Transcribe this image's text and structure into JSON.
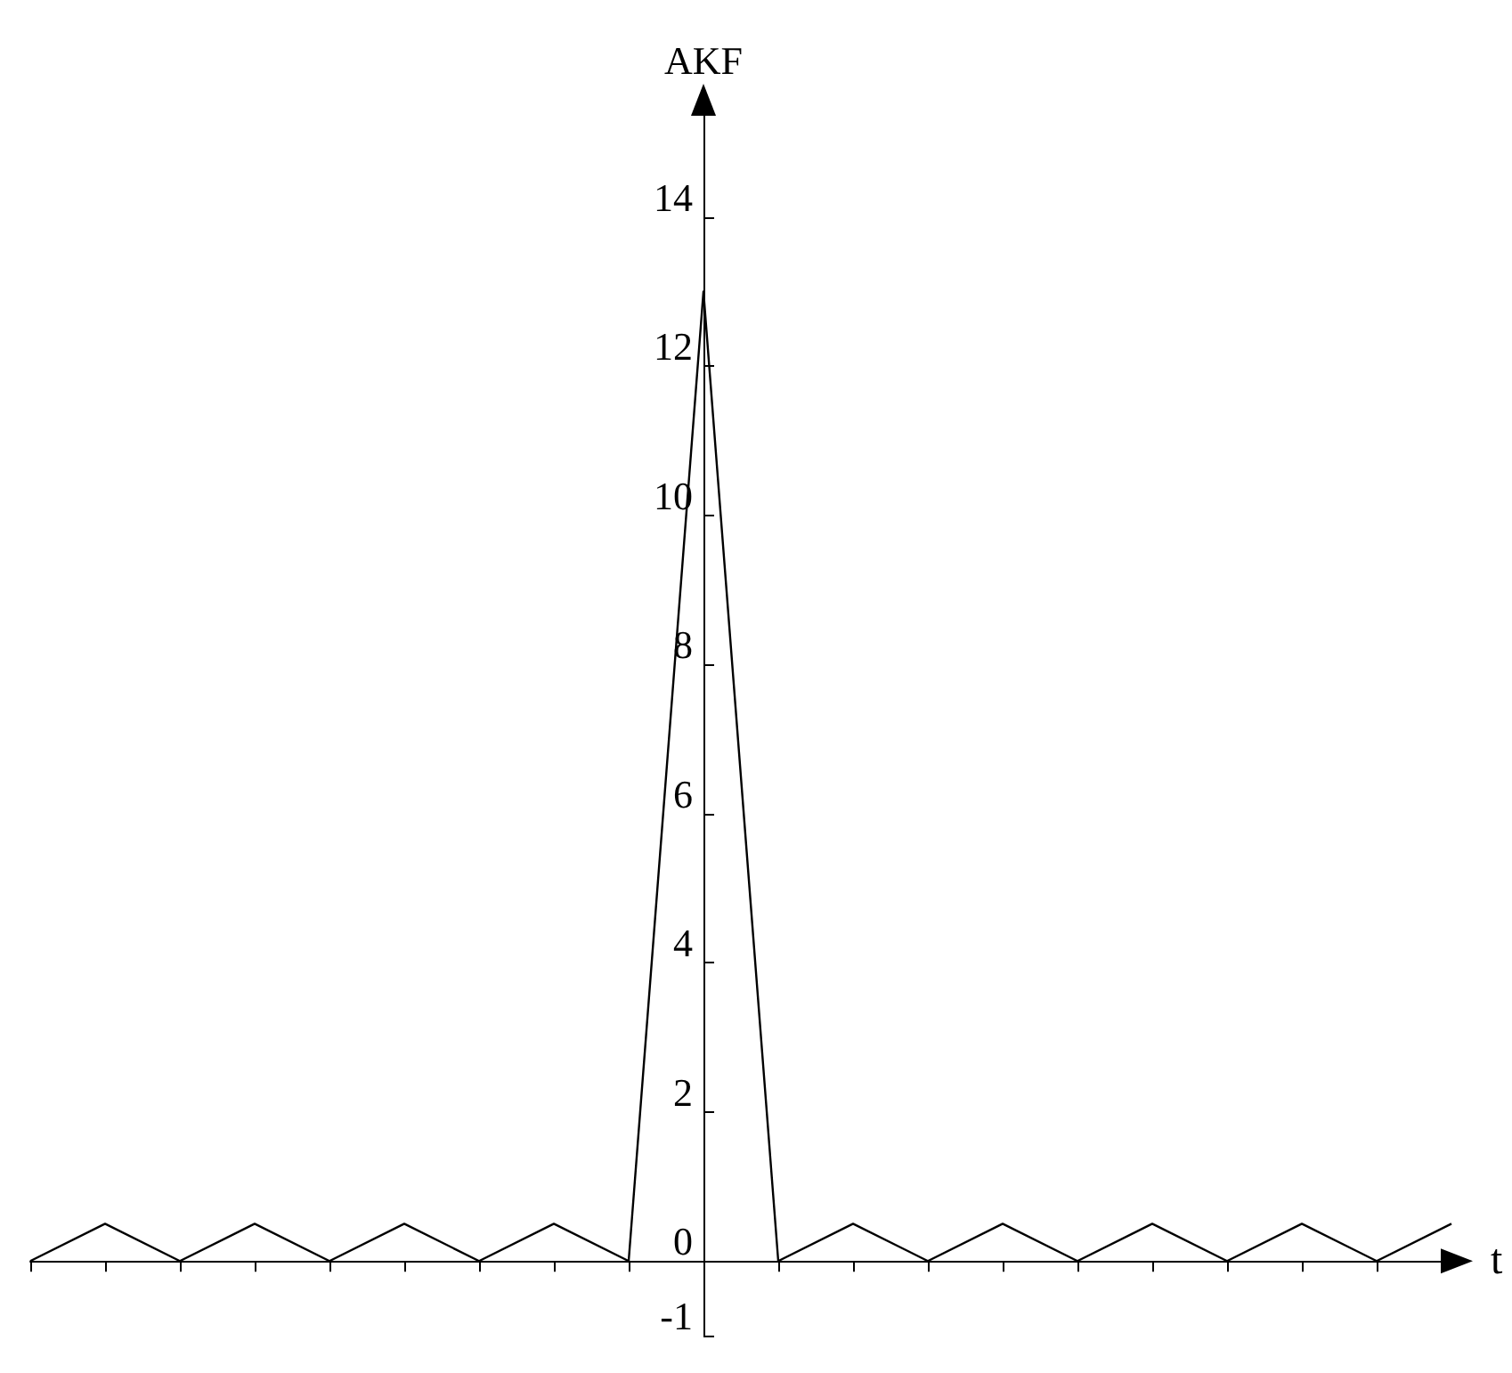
{
  "chart_data": {
    "type": "line",
    "xlabel": "t",
    "ylabel": "AKF",
    "color": "#000000",
    "categories": [
      null,
      null,
      null,
      null,
      null,
      null,
      null,
      null,
      null,
      null,
      null,
      null,
      null,
      null,
      null,
      null,
      null,
      null,
      null,
      null
    ],
    "values": [
      0,
      0.5,
      0,
      0.5,
      0,
      0.5,
      0,
      0.5,
      0,
      13,
      0,
      0.5,
      0,
      0.5,
      0,
      0.5,
      0,
      0.5,
      0,
      0.5
    ],
    "ylim": [
      -1,
      15.5
    ],
    "yticks": [
      -1,
      0,
      2,
      4,
      6,
      8,
      10,
      12,
      14
    ]
  }
}
